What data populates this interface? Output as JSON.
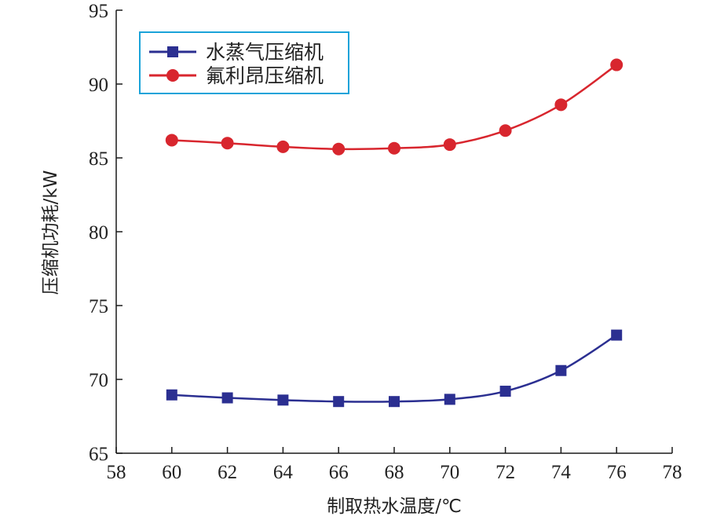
{
  "chart_data": {
    "type": "line",
    "xlabel": "制取热水温度/℃",
    "ylabel": "压缩机功耗/kW",
    "xlim": [
      58,
      78
    ],
    "ylim": [
      65,
      95
    ],
    "xticks": [
      58,
      60,
      62,
      64,
      66,
      68,
      70,
      72,
      74,
      76,
      78
    ],
    "yticks": [
      65,
      70,
      75,
      80,
      85,
      90,
      95
    ],
    "grid": false,
    "legend_position": "top-left",
    "x": [
      60,
      62,
      64,
      66,
      68,
      70,
      72,
      74,
      76
    ],
    "series": [
      {
        "name": "水蒸气压缩机",
        "marker": "square",
        "color": "#2b2f91",
        "values": [
          68.95,
          68.75,
          68.6,
          68.5,
          68.5,
          68.65,
          69.2,
          70.6,
          73.0
        ]
      },
      {
        "name": "氟利昂压缩机",
        "marker": "circle",
        "color": "#d8262e",
        "values": [
          86.2,
          86.0,
          85.75,
          85.6,
          85.65,
          85.9,
          86.85,
          88.6,
          91.3
        ]
      }
    ]
  }
}
